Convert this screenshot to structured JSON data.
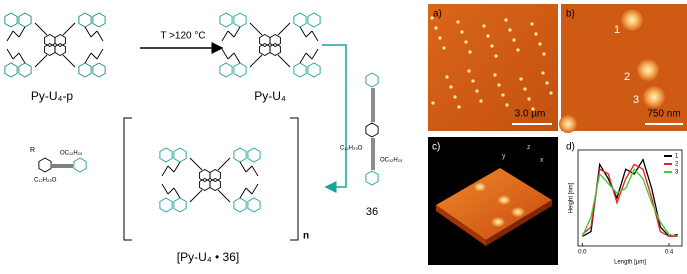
{
  "scheme": {
    "reactant_label": "Py-U₄-p",
    "condition": "T >120 °C",
    "product_label": "Py-U₄",
    "guest_label": "36",
    "complex_label": "[Py-U₄ • 36]",
    "repeat_label": "n",
    "end_group": "R",
    "side_chain_1": "OC₁₂H₂₅",
    "side_chain_2": "C₁₂H₂₅O"
  },
  "afm": {
    "panel_a": {
      "label": "a)",
      "scale": "3.0 µm"
    },
    "panel_b": {
      "label": "b)",
      "scale": "750 nm",
      "spots": [
        "1",
        "2",
        "3"
      ]
    },
    "panel_c": {
      "label": "c)",
      "axes": [
        "y",
        "z",
        "x"
      ]
    },
    "panel_d": {
      "label": "d)",
      "chart_data": {
        "type": "line",
        "x_label": "Length [µm]",
        "y_label": "Height [nm]",
        "x": [
          0,
          0.04,
          0.08,
          0.12,
          0.16,
          0.2,
          0.24,
          0.28,
          0.32,
          0.36,
          0.4,
          0.44
        ],
        "xlim": [
          -0.02,
          0.46
        ],
        "xticks": [
          {
            "value": 0,
            "label": "0.0"
          },
          {
            "value": 0.4,
            "label": "0.4"
          }
        ],
        "ylim": [
          0,
          1
        ],
        "series": [
          {
            "name": "1",
            "color": "#000000",
            "values": [
              0.1,
              0.15,
              0.85,
              0.7,
              0.5,
              0.8,
              0.75,
              0.9,
              0.6,
              0.2,
              0.1,
              0.12
            ]
          },
          {
            "name": "2",
            "color": "#e8201a",
            "values": [
              0.12,
              0.2,
              0.8,
              0.75,
              0.45,
              0.7,
              0.85,
              0.8,
              0.5,
              0.15,
              0.1,
              0.1
            ]
          },
          {
            "name": "3",
            "color": "#3ec83a",
            "values": [
              0.1,
              0.3,
              0.75,
              0.65,
              0.55,
              0.6,
              0.8,
              0.7,
              0.45,
              0.25,
              0.12,
              0.1
            ]
          }
        ]
      }
    }
  }
}
